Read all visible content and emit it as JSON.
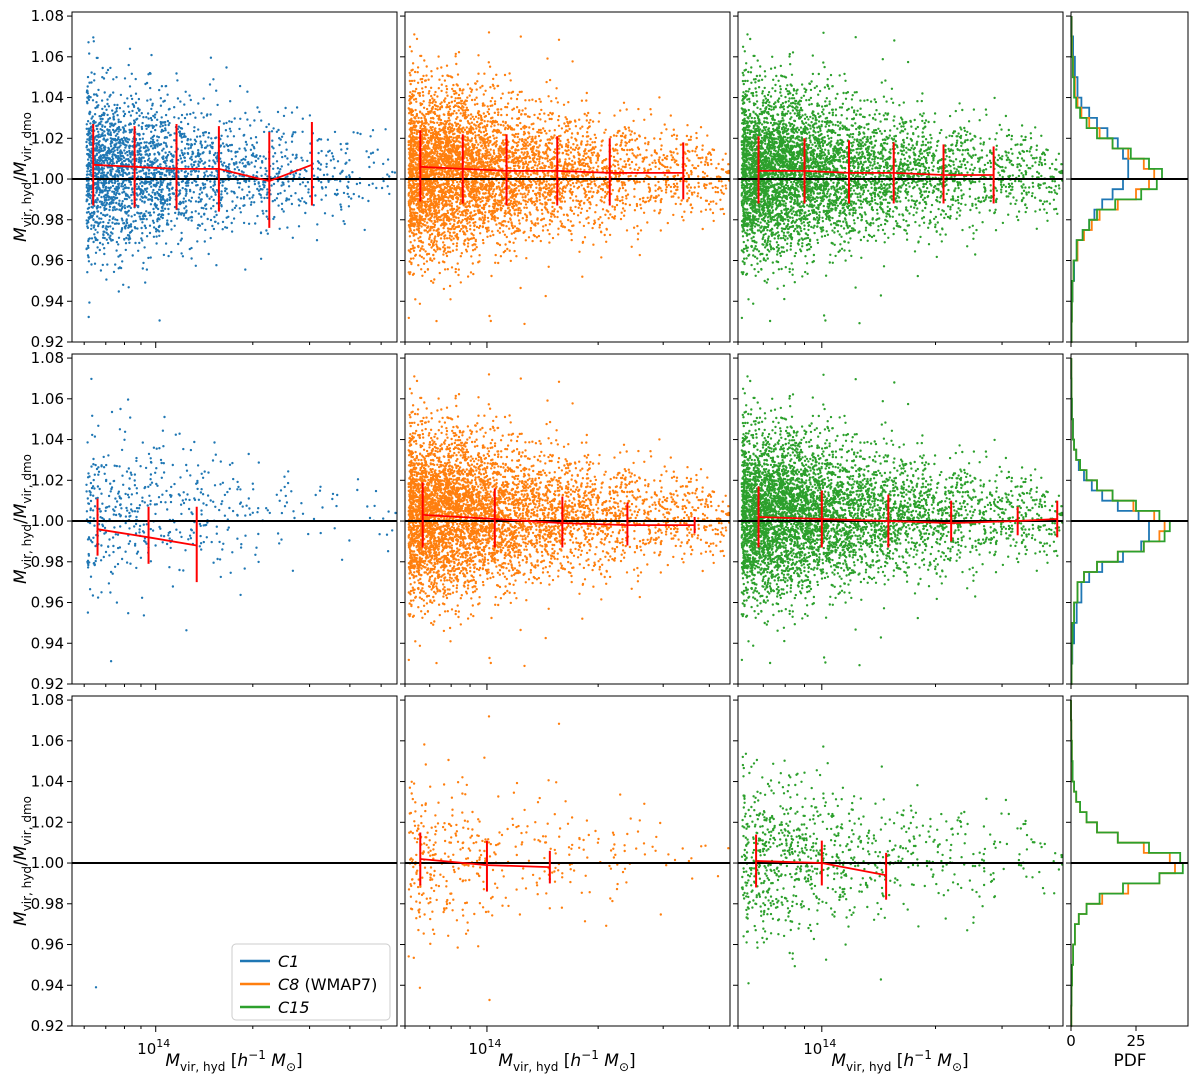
{
  "chart_data": {
    "type": "scatter",
    "layout": "3 rows x 4 columns (3 scatter panels + 1 histogram panel per row)",
    "series": [
      {
        "name": "C1",
        "color": "#1f77b4"
      },
      {
        "name": "C8 (WMAP7)",
        "color": "#ff7f0e"
      },
      {
        "name": "C15",
        "color": "#2ca02c"
      }
    ],
    "legend": {
      "placement": "lower-right of bottom-left panel",
      "entries": [
        "C1",
        "C8 (WMAP7)",
        "C15"
      ]
    },
    "ylabel": "M_vir,hyd / M_vir,dmo",
    "xlabel": "M_vir,hyd [h^-1 M_sun]",
    "x_scale": "log",
    "x_tick_label": "10^14",
    "ylim": [
      0.92,
      1.082
    ],
    "yticks": [
      "0.92",
      "0.94",
      "0.96",
      "0.98",
      "1.00",
      "1.02",
      "1.04",
      "1.06",
      "1.08"
    ],
    "reference_line_y": 1.0,
    "hist_xlabel": "PDF",
    "hist_xticks": [
      "0",
      "25"
    ],
    "hist_xlim": [
      0,
      45
    ],
    "median_color": "#ff0000",
    "panels": [
      {
        "row": 0,
        "col": 0,
        "series": "C1",
        "xlim": [
          55000000000000.0,
          560000000000000.0
        ],
        "npoints": 2600,
        "medians": [
          {
            "x": 64000000000000.0,
            "y": 1.007,
            "lo": 0.987,
            "hi": 1.027
          },
          {
            "x": 86000000000000.0,
            "y": 1.006,
            "lo": 0.986,
            "hi": 1.026
          },
          {
            "x": 116000000000000.0,
            "y": 1.005,
            "lo": 0.985,
            "hi": 1.027
          },
          {
            "x": 157000000000000.0,
            "y": 1.005,
            "lo": 0.984,
            "hi": 1.026
          },
          {
            "x": 225000000000000.0,
            "y": 0.999,
            "lo": 0.976,
            "hi": 1.023
          },
          {
            "x": 305000000000000.0,
            "y": 1.007,
            "lo": 0.987,
            "hi": 1.028
          }
        ]
      },
      {
        "row": 0,
        "col": 1,
        "series": "C8 (WMAP7)",
        "xlim": [
          60000000000000.0,
          455000000000000.0
        ],
        "npoints": 12000,
        "medians": [
          {
            "x": 66000000000000.0,
            "y": 1.006,
            "lo": 0.989,
            "hi": 1.024
          },
          {
            "x": 86000000000000.0,
            "y": 1.005,
            "lo": 0.988,
            "hi": 1.022
          },
          {
            "x": 113000000000000.0,
            "y": 1.004,
            "lo": 0.987,
            "hi": 1.022
          },
          {
            "x": 155000000000000.0,
            "y": 1.004,
            "lo": 0.987,
            "hi": 1.021
          },
          {
            "x": 215000000000000.0,
            "y": 1.003,
            "lo": 0.987,
            "hi": 1.02
          },
          {
            "x": 340000000000000.0,
            "y": 1.003,
            "lo": 0.99,
            "hi": 1.018
          }
        ]
      },
      {
        "row": 0,
        "col": 2,
        "series": "C15",
        "xlim": [
          60000000000000.0,
          435000000000000.0
        ],
        "npoints": 12000,
        "medians": [
          {
            "x": 68000000000000.0,
            "y": 1.004,
            "lo": 0.988,
            "hi": 1.021
          },
          {
            "x": 90000000000000.0,
            "y": 1.004,
            "lo": 0.988,
            "hi": 1.02
          },
          {
            "x": 118000000000000.0,
            "y": 1.003,
            "lo": 0.988,
            "hi": 1.019
          },
          {
            "x": 155000000000000.0,
            "y": 1.003,
            "lo": 0.988,
            "hi": 1.018
          },
          {
            "x": 210000000000000.0,
            "y": 1.002,
            "lo": 0.988,
            "hi": 1.017
          },
          {
            "x": 285000000000000.0,
            "y": 1.002,
            "lo": 0.988,
            "hi": 1.016
          }
        ]
      },
      {
        "row": 1,
        "col": 0,
        "series": "C1",
        "xlim": [
          55000000000000.0,
          560000000000000.0
        ],
        "npoints": 520,
        "medians": [
          {
            "x": 66000000000000.0,
            "y": 0.996,
            "lo": 0.983,
            "hi": 1.011
          },
          {
            "x": 95000000000000.0,
            "y": 0.992,
            "lo": 0.979,
            "hi": 1.007
          },
          {
            "x": 134000000000000.0,
            "y": 0.988,
            "lo": 0.97,
            "hi": 1.007
          }
        ]
      },
      {
        "row": 1,
        "col": 1,
        "series": "C8 (WMAP7)",
        "xlim": [
          60000000000000.0,
          455000000000000.0
        ],
        "npoints": 9000,
        "medians": [
          {
            "x": 67000000000000.0,
            "y": 1.003,
            "lo": 0.987,
            "hi": 1.019
          },
          {
            "x": 105000000000000.0,
            "y": 1.001,
            "lo": 0.987,
            "hi": 1.016
          },
          {
            "x": 160000000000000.0,
            "y": 0.999,
            "lo": 0.987,
            "hi": 1.012
          },
          {
            "x": 240000000000000.0,
            "y": 0.998,
            "lo": 0.988,
            "hi": 1.009
          },
          {
            "x": 365000000000000.0,
            "y": 0.998,
            "lo": 0.994,
            "hi": 1.002
          }
        ]
      },
      {
        "row": 1,
        "col": 2,
        "series": "C15",
        "xlim": [
          60000000000000.0,
          435000000000000.0
        ],
        "npoints": 9000,
        "medians": [
          {
            "x": 68000000000000.0,
            "y": 1.002,
            "lo": 0.987,
            "hi": 1.017
          },
          {
            "x": 100000000000000.0,
            "y": 1.001,
            "lo": 0.987,
            "hi": 1.015
          },
          {
            "x": 150000000000000.0,
            "y": 1.0,
            "lo": 0.987,
            "hi": 1.013
          },
          {
            "x": 220000000000000.0,
            "y": 0.999,
            "lo": 0.99,
            "hi": 1.01
          },
          {
            "x": 330000000000000.0,
            "y": 1.0,
            "lo": 0.993,
            "hi": 1.007
          },
          {
            "x": 420000000000000.0,
            "y": 1.001,
            "lo": 0.992,
            "hi": 1.01
          }
        ]
      },
      {
        "row": 2,
        "col": 0,
        "series": "C1",
        "xlim": [
          55000000000000.0,
          560000000000000.0
        ],
        "npoints": 1,
        "medians": []
      },
      {
        "row": 2,
        "col": 1,
        "series": "C8 (WMAP7)",
        "xlim": [
          60000000000000.0,
          455000000000000.0
        ],
        "npoints": 420,
        "medians": [
          {
            "x": 66000000000000.0,
            "y": 1.002,
            "lo": 0.989,
            "hi": 1.015
          },
          {
            "x": 100000000000000.0,
            "y": 0.999,
            "lo": 0.986,
            "hi": 1.011
          },
          {
            "x": 148000000000000.0,
            "y": 0.998,
            "lo": 0.99,
            "hi": 1.006
          }
        ]
      },
      {
        "row": 2,
        "col": 2,
        "series": "C15",
        "xlim": [
          60000000000000.0,
          435000000000000.0
        ],
        "npoints": 900,
        "medians": [
          {
            "x": 67000000000000.0,
            "y": 1.001,
            "lo": 0.988,
            "hi": 1.014
          },
          {
            "x": 100000000000000.0,
            "y": 1.0,
            "lo": 0.989,
            "hi": 1.011
          },
          {
            "x": 148000000000000.0,
            "y": 0.994,
            "lo": 0.982,
            "hi": 1.005
          }
        ]
      }
    ],
    "histograms": [
      {
        "row": 0,
        "bin_edges": [
          0.92,
          0.93,
          0.94,
          0.95,
          0.96,
          0.97,
          0.975,
          0.98,
          0.985,
          0.99,
          0.995,
          1.0,
          1.005,
          1.01,
          1.015,
          1.02,
          1.025,
          1.03,
          1.035,
          1.04,
          1.05,
          1.06,
          1.07,
          1.08
        ],
        "series": [
          {
            "name": "C1",
            "pdf": [
              0.2,
              0.3,
              0.6,
              1.2,
              2.2,
              4.5,
              7,
              9,
              12,
              16,
              20,
              22,
              22,
              20,
              18,
              14,
              10,
              7,
              4,
              2.5,
              1.5,
              0.8,
              0.3
            ]
          },
          {
            "name": "C8 (WMAP7)",
            "pdf": [
              0.2,
              0.3,
              0.5,
              1.0,
              2.5,
              5,
              8,
              11,
              18,
              25,
              30,
              32,
              28,
              22,
              16,
              11,
              7,
              4,
              2.5,
              1.5,
              0.8,
              0.4,
              0.2
            ]
          },
          {
            "name": "C15",
            "pdf": [
              0.2,
              0.3,
              0.5,
              1.0,
              2.2,
              4.5,
              7,
              10,
              17,
              27,
              33,
              35,
              30,
              23,
              16,
              10,
              6,
              3.5,
              2.0,
              1.2,
              0.7,
              0.3,
              0.1
            ]
          }
        ]
      },
      {
        "row": 1,
        "bin_edges": [
          0.92,
          0.93,
          0.94,
          0.95,
          0.96,
          0.97,
          0.975,
          0.98,
          0.985,
          0.99,
          0.995,
          1.0,
          1.005,
          1.01,
          1.015,
          1.02,
          1.025,
          1.03,
          1.035,
          1.04,
          1.05,
          1.06,
          1.07,
          1.08
        ],
        "series": [
          {
            "name": "C1",
            "pdf": [
              0.2,
              0.5,
              1.2,
              2.2,
              4,
              7,
              12,
              20,
              27,
              30,
              30,
              26,
              18,
              12,
              8,
              5,
              3,
              2,
              1.2,
              0.8,
              0.4,
              0.2,
              0.1
            ]
          },
          {
            "name": "C8 (WMAP7)",
            "pdf": [
              0.2,
              0.3,
              0.6,
              1.2,
              2.5,
              5,
              10,
              18,
              28,
              34,
              36,
              32,
              24,
              16,
              10,
              6,
              3.5,
              2.0,
              1.2,
              0.7,
              0.3,
              0.2,
              0.1
            ]
          },
          {
            "name": "C15",
            "pdf": [
              0.2,
              0.3,
              0.6,
              1.2,
              2.5,
              5,
              10,
              18,
              28,
              36,
              38,
              34,
              25,
              16,
              10,
              6,
              3.5,
              2.0,
              1.2,
              0.7,
              0.3,
              0.2,
              0.1
            ]
          }
        ]
      },
      {
        "row": 2,
        "bin_edges": [
          0.92,
          0.93,
          0.94,
          0.95,
          0.96,
          0.97,
          0.975,
          0.98,
          0.985,
          0.99,
          0.995,
          1.0,
          1.005,
          1.01,
          1.015,
          1.02,
          1.025,
          1.03,
          1.035,
          1.04,
          1.05,
          1.06,
          1.07,
          1.08
        ],
        "series": [
          {
            "name": "C8 (WMAP7)",
            "pdf": [
              0.1,
              0.2,
              0.4,
              0.8,
              1.5,
              3,
              6,
              12,
              22,
              34,
              40,
              38,
              28,
              18,
              10,
              6,
              3.5,
              2.0,
              1.2,
              0.6,
              0.3,
              0.1,
              0.0
            ]
          },
          {
            "name": "C15",
            "pdf": [
              0.1,
              0.2,
              0.4,
              0.8,
              1.5,
              3,
              6,
              11,
              20,
              34,
              43,
              42,
              30,
              18,
              10,
              6,
              3.5,
              2.0,
              1.2,
              0.6,
              0.3,
              0.1,
              0.0
            ]
          }
        ]
      }
    ]
  }
}
